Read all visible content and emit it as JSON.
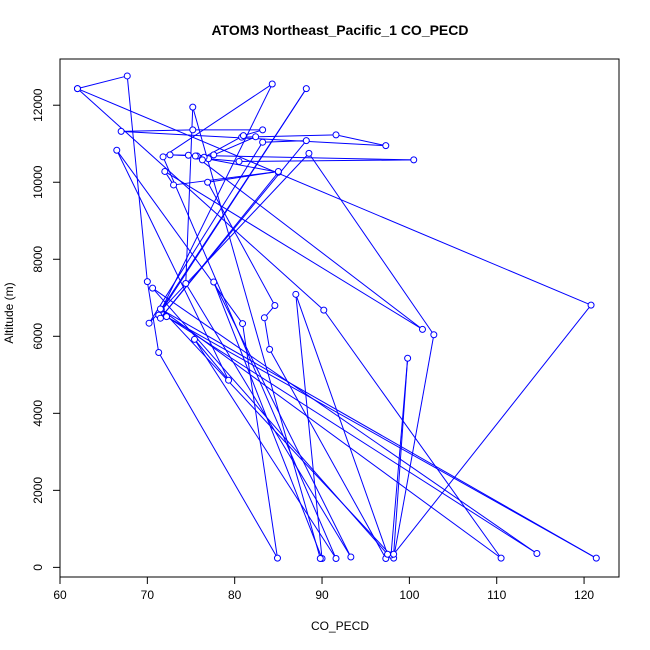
{
  "chart_data": {
    "type": "line",
    "title": "ATOM3 Northeast_Pacific_1 CO_PECD",
    "xlabel": "CO_PECD",
    "ylabel": "Altitude (m)",
    "xlim": [
      60,
      124
    ],
    "ylim": [
      -250,
      13200
    ],
    "x_ticks": [
      60,
      70,
      80,
      90,
      100,
      110,
      120
    ],
    "y_ticks": [
      0,
      2000,
      4000,
      6000,
      8000,
      10000,
      12000
    ],
    "grid": false,
    "legend": "none",
    "series": [
      {
        "color": "#0000ff",
        "marker": "open-circle",
        "points": [
          [
            62.0,
            12430
          ],
          [
            67.7,
            12760
          ],
          [
            70.0,
            7420
          ],
          [
            71.3,
            5580
          ],
          [
            84.9,
            240
          ],
          [
            80.9,
            6330
          ],
          [
            66.5,
            10830
          ],
          [
            79.3,
            4860
          ],
          [
            75.4,
            5920
          ],
          [
            91.6,
            230
          ],
          [
            71.8,
            10660
          ],
          [
            84.3,
            12550
          ],
          [
            71.3,
            6550
          ],
          [
            88.2,
            12430
          ],
          [
            71.6,
            6700
          ],
          [
            98.2,
            240
          ],
          [
            102.8,
            6040
          ],
          [
            88.5,
            10750
          ],
          [
            70.2,
            6340
          ],
          [
            83.2,
            11040
          ],
          [
            88.2,
            11080
          ],
          [
            71.5,
            6470
          ],
          [
            85.0,
            10260
          ],
          [
            74.7,
            10700
          ],
          [
            75.7,
            10680
          ],
          [
            72.6,
            10710
          ],
          [
            100.5,
            10580
          ],
          [
            80.5,
            10540
          ],
          [
            77.0,
            10610
          ],
          [
            77.6,
            10710
          ],
          [
            82.4,
            11180
          ],
          [
            80.8,
            11170
          ],
          [
            91.6,
            11230
          ],
          [
            97.3,
            10950
          ],
          [
            67.0,
            11320
          ],
          [
            75.2,
            11360
          ],
          [
            83.2,
            11360
          ],
          [
            81.0,
            11210
          ],
          [
            76.5,
            10650
          ],
          [
            76.3,
            10580
          ],
          [
            75.5,
            10680
          ],
          [
            101.5,
            6180
          ],
          [
            72.0,
            10280
          ],
          [
            73.0,
            9930
          ],
          [
            85.0,
            10280
          ],
          [
            76.9,
            10000
          ],
          [
            84.6,
            6800
          ],
          [
            83.4,
            6480
          ],
          [
            84.0,
            5660
          ],
          [
            97.3,
            230
          ],
          [
            97.9,
            320
          ],
          [
            99.8,
            5430
          ],
          [
            98.2,
            340
          ],
          [
            120.8,
            6810
          ],
          [
            62.0,
            12430
          ],
          [
            90.2,
            6680
          ],
          [
            110.5,
            240
          ],
          [
            71.5,
            6710
          ],
          [
            121.4,
            240
          ],
          [
            72.2,
            6510
          ],
          [
            114.6,
            360
          ],
          [
            70.6,
            7250
          ],
          [
            97.5,
            340
          ],
          [
            87.0,
            7090
          ],
          [
            90.0,
            230
          ],
          [
            77.6,
            7410
          ],
          [
            93.3,
            270
          ],
          [
            74.4,
            7370
          ],
          [
            75.2,
            11950
          ],
          [
            89.8,
            230
          ]
        ]
      }
    ]
  }
}
